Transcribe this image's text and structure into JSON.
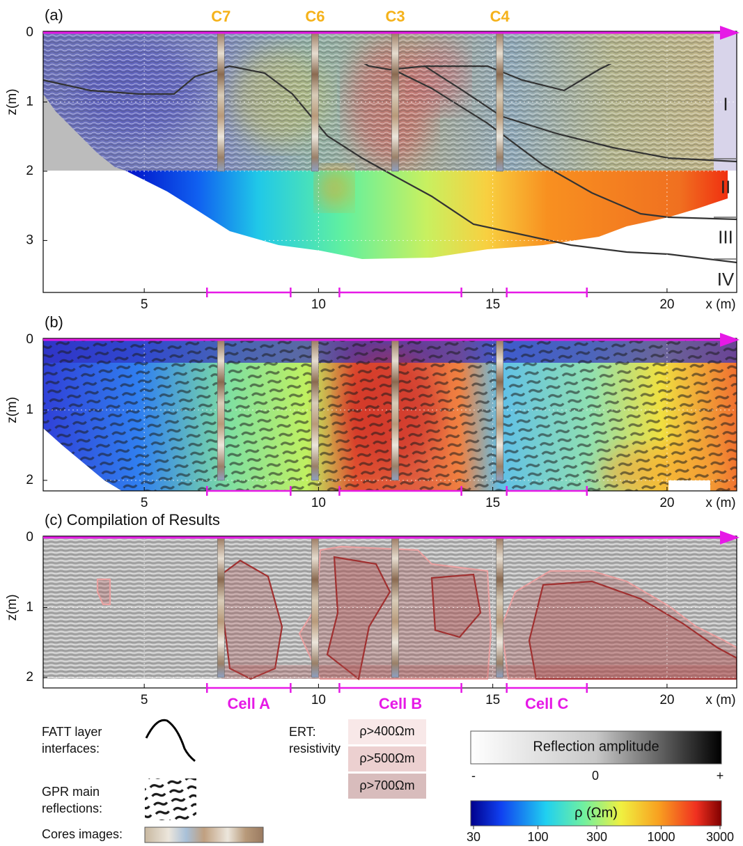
{
  "chart_data": [
    {
      "type": "heatmap",
      "title": "(a)",
      "xlim": [
        2.1,
        22
      ],
      "ylim": [
        0,
        3.75
      ],
      "xticks": [
        5,
        10,
        15,
        20
      ],
      "yticks": [
        0,
        1,
        2,
        3
      ],
      "xlabel": "x (m)",
      "ylabel": "z(m)",
      "layers": [
        "I",
        "II",
        "III",
        "IV"
      ]
    },
    {
      "type": "heatmap",
      "title": "(b)",
      "xlim": [
        2.1,
        22
      ],
      "ylim": [
        0,
        2.15
      ],
      "xticks": [
        5,
        10,
        15,
        20
      ],
      "yticks": [
        0,
        1,
        2
      ],
      "xlabel": "x (m)",
      "ylabel": "z(m)"
    },
    {
      "type": "heatmap",
      "title": "(c) Compilation of Results",
      "xlim": [
        2.1,
        22
      ],
      "ylim": [
        0,
        2.15
      ],
      "xticks": [
        5,
        10,
        15,
        20
      ],
      "yticks": [
        0,
        1,
        2
      ],
      "xlabel": "x (m)",
      "ylabel": "z(m)"
    }
  ],
  "cores": [
    {
      "name": "C7",
      "x": 7.2
    },
    {
      "name": "C6",
      "x": 9.9
    },
    {
      "name": "C3",
      "x": 12.2
    },
    {
      "name": "C4",
      "x": 15.2
    }
  ],
  "cells": [
    {
      "name": "Cell A",
      "x0": 6.8,
      "x1": 9.2
    },
    {
      "name": "Cell B",
      "x0": 10.6,
      "x1": 14.1
    },
    {
      "name": "Cell C",
      "x0": 15.4,
      "x1": 17.7
    }
  ],
  "legend": {
    "fatt": [
      "FATT layer",
      "interfaces:"
    ],
    "gpr": [
      "GPR main",
      "reflections:"
    ],
    "cores": "Cores images:",
    "ert": [
      "ERT:",
      "resistivity"
    ],
    "ert_classes": [
      "ρ>400Ωm",
      "ρ>500Ωm",
      "ρ>700Ωm"
    ],
    "amplitude": {
      "title": "Reflection amplitude",
      "ticks": [
        "-",
        "0",
        "+"
      ]
    },
    "resistivity": {
      "title": "ρ (Ωm)",
      "clim": [
        30,
        3000
      ],
      "ticks": [
        30,
        100,
        300,
        1000,
        3000
      ],
      "log": true
    }
  }
}
